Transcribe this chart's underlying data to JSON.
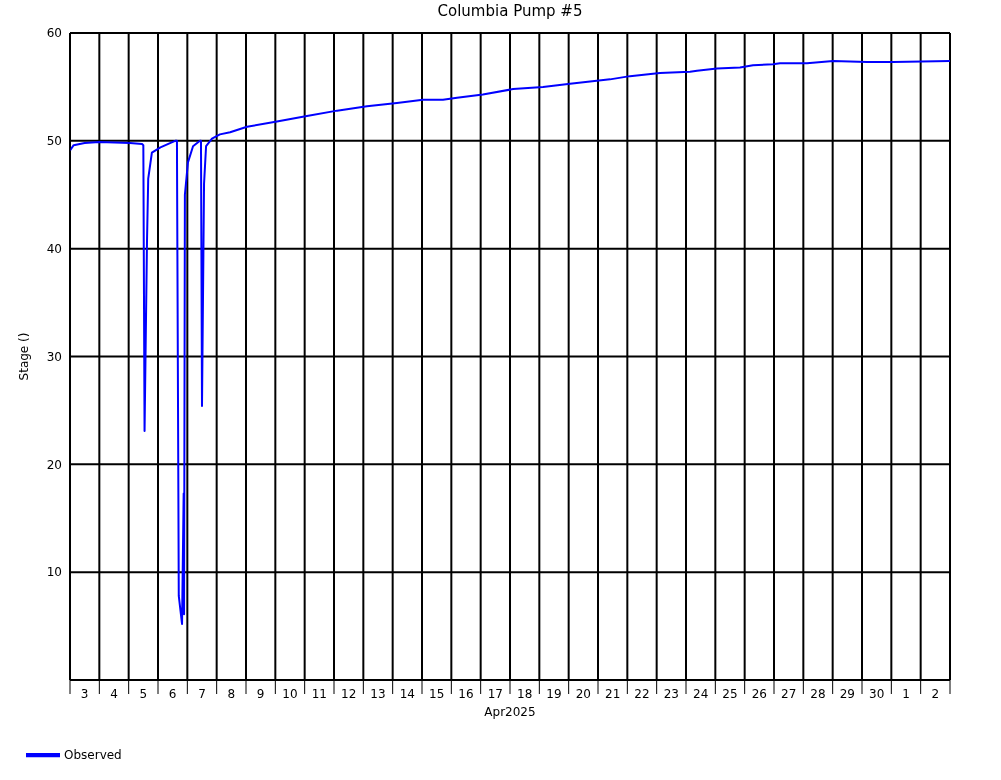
{
  "chart_data": {
    "type": "line",
    "title": "Columbia Pump #5",
    "xlabel": "Apr2025",
    "ylabel": "Stage ()",
    "x": [
      "2025-04-03T00:00",
      "2025-04-03T03:00",
      "2025-04-03T12:00",
      "2025-04-04T00:00",
      "2025-04-05T01:00",
      "2025-04-05T11:00",
      "2025-04-05T12:00",
      "2025-04-05T13:00",
      "2025-04-05T15:00",
      "2025-04-05T16:00",
      "2025-04-05T19:00",
      "2025-04-06T02:00",
      "2025-04-06T14:00",
      "2025-04-06T15:30",
      "2025-04-06T17:00",
      "2025-04-06T19:40",
      "2025-04-06T21:00",
      "2025-04-06T21:20",
      "2025-04-06T22:00",
      "2025-04-07T00:30",
      "2025-04-07T04:40",
      "2025-04-07T10:20",
      "2025-04-07T11:10",
      "2025-04-07T12:00",
      "2025-04-07T13:40",
      "2025-04-07T15:20",
      "2025-04-07T20:10",
      "2025-04-08T02:40",
      "2025-04-08T11:00",
      "2025-04-09T00:50",
      "2025-04-10T01:20",
      "2025-04-11T01:50",
      "2025-04-12T02:30",
      "2025-04-13T03:00",
      "2025-04-14T03:30",
      "2025-04-15T00:50",
      "2025-04-15T17:10",
      "2025-04-16T04:40",
      "2025-04-17T01:50",
      "2025-04-18T02:30",
      "2025-04-19T03:00",
      "2025-04-20T01:10",
      "2025-04-21T09:50",
      "2025-04-22T02:10",
      "2025-04-23T02:40",
      "2025-04-24T03:20",
      "2025-04-24T09:00",
      "2025-04-25T01:20",
      "2025-04-25T20:10",
      "2025-04-26T06:50",
      "2025-04-26T23:10",
      "2025-04-27T04:50",
      "2025-04-28T03:00",
      "2025-04-29T00:20",
      "2025-04-30T04:10",
      "2025-05-01T01:20",
      "2025-05-03T00:00"
    ],
    "series": [
      {
        "name": "Observed",
        "color": "#0000ff",
        "values": [
          49.1,
          49.6,
          49.8,
          49.9,
          49.8,
          49.7,
          49.6,
          23.1,
          40.7,
          46.5,
          48.9,
          49.4,
          50.0,
          50.0,
          7.8,
          5.2,
          17.3,
          6.1,
          45.0,
          48.0,
          49.5,
          50.0,
          50.0,
          25.4,
          46.0,
          49.5,
          50.2,
          50.6,
          50.8,
          51.3,
          51.8,
          52.3,
          52.8,
          53.2,
          53.5,
          53.8,
          53.8,
          54.0,
          54.3,
          54.8,
          55.0,
          55.3,
          55.7,
          56.0,
          56.3,
          56.4,
          56.5,
          56.7,
          56.8,
          57.0,
          57.1,
          57.2,
          57.2,
          57.4,
          57.3,
          57.3,
          57.4
        ]
      }
    ],
    "xlim": [
      "2025-04-03T00:00",
      "2025-05-03T00:00"
    ],
    "xticks": [
      {
        "value": "2025-04-03T00:00",
        "label": null
      },
      {
        "value": "2025-04-03T12:00",
        "label": "3"
      },
      {
        "value": "2025-04-04T00:00",
        "label": null
      },
      {
        "value": "2025-04-04T12:00",
        "label": "4"
      },
      {
        "value": "2025-04-05T00:00",
        "label": null
      },
      {
        "value": "2025-04-05T12:00",
        "label": "5"
      },
      {
        "value": "2025-04-06T00:00",
        "label": null
      },
      {
        "value": "2025-04-06T12:00",
        "label": "6"
      },
      {
        "value": "2025-04-07T00:00",
        "label": null
      },
      {
        "value": "2025-04-07T12:00",
        "label": "7"
      },
      {
        "value": "2025-04-08T00:00",
        "label": null
      },
      {
        "value": "2025-04-08T12:00",
        "label": "8"
      },
      {
        "value": "2025-04-09T00:00",
        "label": null
      },
      {
        "value": "2025-04-09T12:00",
        "label": "9"
      },
      {
        "value": "2025-04-10T00:00",
        "label": null
      },
      {
        "value": "2025-04-10T12:00",
        "label": "10"
      },
      {
        "value": "2025-04-11T00:00",
        "label": null
      },
      {
        "value": "2025-04-11T12:00",
        "label": "11"
      },
      {
        "value": "2025-04-12T00:00",
        "label": null
      },
      {
        "value": "2025-04-12T12:00",
        "label": "12"
      },
      {
        "value": "2025-04-13T00:00",
        "label": null
      },
      {
        "value": "2025-04-13T12:00",
        "label": "13"
      },
      {
        "value": "2025-04-14T00:00",
        "label": null
      },
      {
        "value": "2025-04-14T12:00",
        "label": "14"
      },
      {
        "value": "2025-04-15T00:00",
        "label": null
      },
      {
        "value": "2025-04-15T12:00",
        "label": "15"
      },
      {
        "value": "2025-04-16T00:00",
        "label": null
      },
      {
        "value": "2025-04-16T12:00",
        "label": "16"
      },
      {
        "value": "2025-04-17T00:00",
        "label": null
      },
      {
        "value": "2025-04-17T12:00",
        "label": "17"
      },
      {
        "value": "2025-04-18T00:00",
        "label": null
      },
      {
        "value": "2025-04-18T12:00",
        "label": "18"
      },
      {
        "value": "2025-04-19T00:00",
        "label": null
      },
      {
        "value": "2025-04-19T12:00",
        "label": "19"
      },
      {
        "value": "2025-04-20T00:00",
        "label": null
      },
      {
        "value": "2025-04-20T12:00",
        "label": "20"
      },
      {
        "value": "2025-04-21T00:00",
        "label": null
      },
      {
        "value": "2025-04-21T12:00",
        "label": "21"
      },
      {
        "value": "2025-04-22T00:00",
        "label": null
      },
      {
        "value": "2025-04-22T12:00",
        "label": "22"
      },
      {
        "value": "2025-04-23T00:00",
        "label": null
      },
      {
        "value": "2025-04-23T12:00",
        "label": "23"
      },
      {
        "value": "2025-04-24T00:00",
        "label": null
      },
      {
        "value": "2025-04-24T12:00",
        "label": "24"
      },
      {
        "value": "2025-04-25T00:00",
        "label": null
      },
      {
        "value": "2025-04-25T12:00",
        "label": "25"
      },
      {
        "value": "2025-04-26T00:00",
        "label": null
      },
      {
        "value": "2025-04-26T12:00",
        "label": "26"
      },
      {
        "value": "2025-04-27T00:00",
        "label": null
      },
      {
        "value": "2025-04-27T12:00",
        "label": "27"
      },
      {
        "value": "2025-04-28T00:00",
        "label": null
      },
      {
        "value": "2025-04-28T12:00",
        "label": "28"
      },
      {
        "value": "2025-04-29T00:00",
        "label": null
      },
      {
        "value": "2025-04-29T12:00",
        "label": "29"
      },
      {
        "value": "2025-04-30T00:00",
        "label": null
      },
      {
        "value": "2025-04-30T12:00",
        "label": "30"
      },
      {
        "value": "2025-05-01T00:00",
        "label": null
      },
      {
        "value": "2025-05-01T12:00",
        "label": "1"
      },
      {
        "value": "2025-05-02T00:00",
        "label": null
      },
      {
        "value": "2025-05-02T12:00",
        "label": "2"
      },
      {
        "value": "2025-05-03T00:00",
        "label": null
      }
    ],
    "ylim": [
      0,
      60
    ],
    "yticks": [
      10,
      20,
      30,
      40,
      50,
      60
    ],
    "grid": true,
    "legend": "bottom left",
    "marker": "none",
    "line_style": "solid"
  }
}
